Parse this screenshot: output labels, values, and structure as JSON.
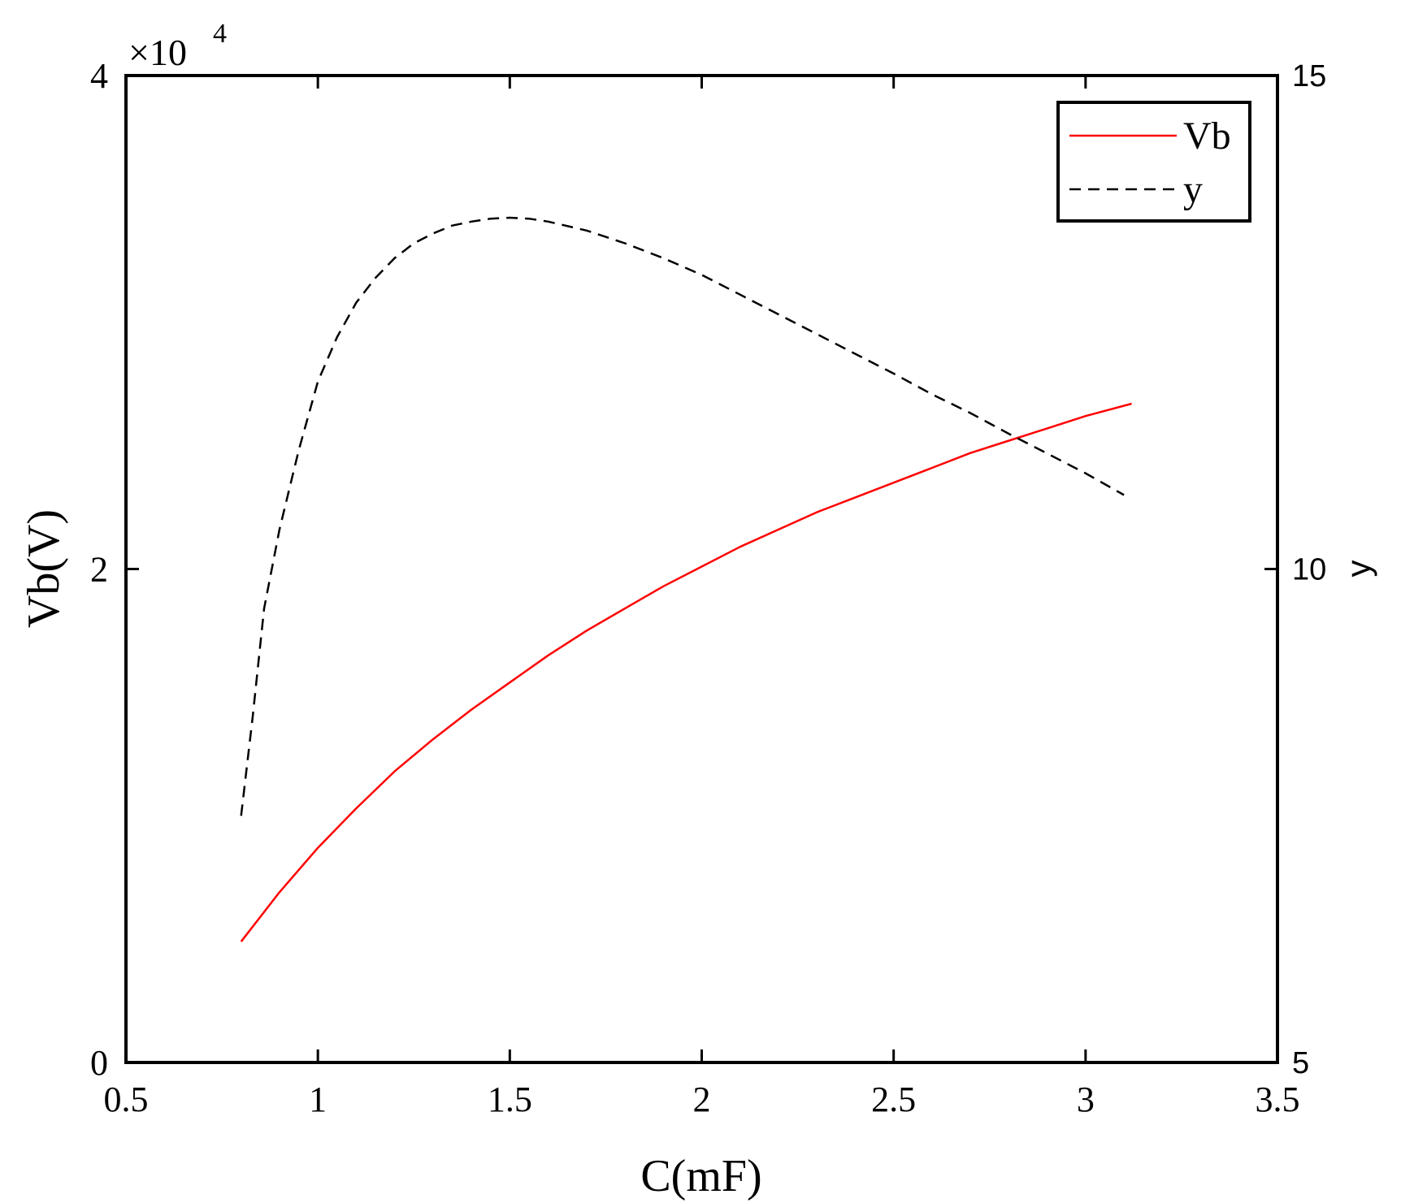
{
  "chart_data": {
    "type": "line",
    "title": "",
    "xlabel": "C(mF)",
    "ylabel": "Vb(V)",
    "ylabel_right": "y",
    "xlim": [
      0.5,
      3.5
    ],
    "ylim": [
      0,
      40000
    ],
    "ylim_right": [
      5,
      15
    ],
    "x_ticks": [
      "0.5",
      "1",
      "1.5",
      "2",
      "2.5",
      "3",
      "3.5"
    ],
    "y_ticks": [
      "0",
      "2",
      "4"
    ],
    "y_ticks_right": [
      "5",
      "10",
      "15"
    ],
    "y_multiplier": "×10",
    "y_multiplier_exp": "4",
    "grid": false,
    "legend_position": "top-right",
    "colors": {
      "Vb": "#ff0000",
      "y": "#000000"
    },
    "series": [
      {
        "name": "Vb",
        "axis": "left",
        "style": "solid",
        "x": [
          0.8,
          0.9,
          1.0,
          1.1,
          1.2,
          1.3,
          1.4,
          1.5,
          1.6,
          1.7,
          1.8,
          1.9,
          2.0,
          2.1,
          2.2,
          2.3,
          2.4,
          2.5,
          2.6,
          2.7,
          2.8,
          2.9,
          3.0,
          3.12
        ],
        "values": [
          4900,
          6900,
          8700,
          10300,
          11800,
          13100,
          14300,
          15400,
          16500,
          17500,
          18400,
          19300,
          20100,
          20900,
          21600,
          22300,
          22900,
          23500,
          24100,
          24700,
          25200,
          25700,
          26200,
          26700
        ]
      },
      {
        "name": "y",
        "axis": "right",
        "style": "dashed",
        "x": [
          0.8,
          0.83,
          0.86,
          0.9,
          0.95,
          1.0,
          1.05,
          1.1,
          1.15,
          1.2,
          1.25,
          1.3,
          1.35,
          1.4,
          1.45,
          1.5,
          1.55,
          1.6,
          1.7,
          1.8,
          1.9,
          2.0,
          2.1,
          2.2,
          2.3,
          2.4,
          2.5,
          2.6,
          2.7,
          2.8,
          2.9,
          3.0,
          3.1
        ],
        "values": [
          7.5,
          8.5,
          9.6,
          10.4,
          11.2,
          11.9,
          12.35,
          12.7,
          12.95,
          13.15,
          13.3,
          13.4,
          13.48,
          13.52,
          13.55,
          13.56,
          13.55,
          13.52,
          13.43,
          13.3,
          13.15,
          12.98,
          12.78,
          12.58,
          12.38,
          12.18,
          11.98,
          11.77,
          11.58,
          11.37,
          11.17,
          10.97,
          10.75
        ]
      }
    ]
  }
}
